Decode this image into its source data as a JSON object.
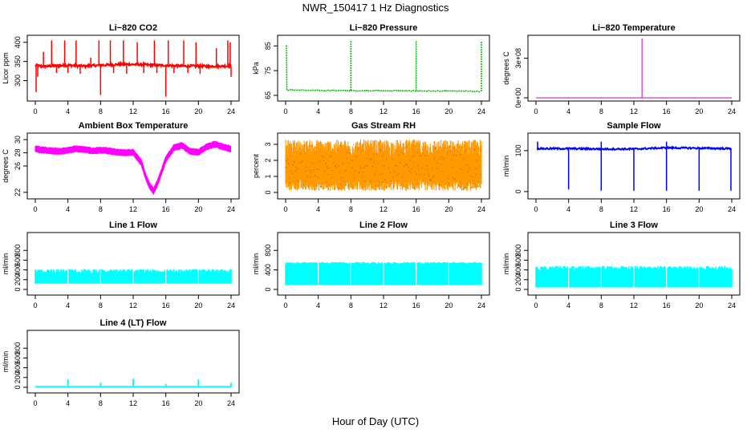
{
  "title": "NWR_150417  1 Hz Diagnostics",
  "xlabel": "Hour of Day (UTC)",
  "chart_data": [
    {
      "type": "line",
      "title": "Li−820 CO2",
      "ylabel": "Licor ppm",
      "color": "#ff0000",
      "xlim": [
        0,
        24
      ],
      "ylim": [
        255,
        410
      ],
      "yticks": [
        "300",
        "350",
        "400"
      ],
      "xticks": [
        "0",
        "4",
        "8",
        "12",
        "16",
        "20",
        "24"
      ],
      "series": [
        {
          "name": "CO2",
          "x": [
            0,
            0.5,
            1,
            2,
            3,
            4,
            5,
            6,
            7,
            8,
            9,
            10,
            11,
            12,
            13,
            14,
            15,
            16,
            17,
            18,
            19,
            20,
            21,
            22,
            23,
            24
          ],
          "y": [
            340,
            338,
            337,
            338,
            339,
            340,
            339,
            338,
            339,
            340,
            341,
            342,
            343,
            342,
            342,
            341,
            340,
            340,
            339,
            338,
            338,
            338,
            337,
            338,
            338,
            338
          ]
        }
      ]
    },
    {
      "type": "line",
      "title": "Li−820 Pressure",
      "ylabel": "kPa",
      "color": "#00bb00",
      "xlim": [
        0,
        24
      ],
      "ylim": [
        64,
        88
      ],
      "yticks": [
        "65",
        "75",
        "85"
      ],
      "xticks": [
        "0",
        "4",
        "8",
        "12",
        "16",
        "20",
        "24"
      ],
      "series": [
        {
          "name": "Pressure",
          "x": [
            0,
            0.2,
            4,
            8,
            12,
            16,
            20,
            24
          ],
          "y": [
            85,
            67.2,
            67.0,
            66.9,
            66.9,
            66.8,
            66.7,
            66.6
          ]
        }
      ]
    },
    {
      "type": "line",
      "title": "Li−820 Temperature",
      "ylabel": "degrees C",
      "color": "#cc00cc",
      "xlim": [
        0,
        24
      ],
      "ylim": [
        0,
        450000000
      ],
      "yticks": [
        "0e+00",
        "3e+08"
      ],
      "xticks": [
        "0",
        "4",
        "8",
        "12",
        "16",
        "20",
        "24"
      ],
      "series": [
        {
          "name": "Temperature",
          "x": [
            0,
            13,
            13,
            13,
            24
          ],
          "y": [
            50,
            50,
            400000000,
            50,
            50
          ]
        }
      ]
    },
    {
      "type": "line",
      "title": "Ambient Box Temperature",
      "ylabel": "degrees C",
      "color": "#ff00ff",
      "xlim": [
        0,
        24
      ],
      "ylim": [
        21.5,
        30.5
      ],
      "yticks": [
        "22",
        "26",
        "28",
        "30"
      ],
      "xticks": [
        "0",
        "4",
        "8",
        "12",
        "16",
        "20",
        "24"
      ],
      "series": [
        {
          "name": "Ambient",
          "x": [
            0,
            1,
            2,
            3,
            4,
            5,
            6,
            7,
            8,
            9,
            10,
            11,
            12,
            13,
            13.5,
            14,
            14.5,
            15,
            16,
            17,
            18,
            19,
            20,
            21,
            22,
            23,
            24
          ],
          "y": [
            28.6,
            28.4,
            28.3,
            28.2,
            28.4,
            28.6,
            28.5,
            28.3,
            28.4,
            28.3,
            28.1,
            28.0,
            28.1,
            26.5,
            24.5,
            23.0,
            22.2,
            23.5,
            27.0,
            28.8,
            29.1,
            28.2,
            28.1,
            28.9,
            29.3,
            28.9,
            28.6
          ]
        }
      ]
    },
    {
      "type": "scatter",
      "title": "Gas Stream RH",
      "ylabel": "percent",
      "color": "#ff9900",
      "xlim": [
        0,
        24
      ],
      "ylim": [
        -0.2,
        3.5
      ],
      "yticks": [
        "0",
        "1",
        "2",
        "3"
      ],
      "xticks": [
        "0",
        "4",
        "8",
        "12",
        "16",
        "20",
        "24"
      ],
      "series": [
        {
          "name": "RH",
          "x": [
            0,
            24
          ],
          "y": [
            0.1,
            3.2
          ]
        }
      ]
    },
    {
      "type": "line",
      "title": "Sample Flow",
      "ylabel": "ml/min",
      "color": "#0000ff",
      "xlim": [
        0,
        24
      ],
      "ylim": [
        -10,
        135
      ],
      "yticks": [
        "0",
        "100"
      ],
      "xticks": [
        "0",
        "4",
        "8",
        "12",
        "16",
        "20",
        "24"
      ],
      "series": [
        {
          "name": "Sample",
          "x": [
            0,
            4,
            8,
            12,
            16,
            20,
            24
          ],
          "y": [
            105,
            105,
            104,
            104,
            107,
            106,
            105
          ]
        }
      ]
    },
    {
      "type": "line",
      "title": "Line 1 Flow",
      "ylabel": "ml/min",
      "color": "#00ffff",
      "xlim": [
        0,
        24
      ],
      "ylim": [
        -50,
        1100
      ],
      "yticks": [
        "0",
        "200",
        "400",
        "600",
        "800"
      ],
      "xticks": [
        "0",
        "4",
        "8",
        "12",
        "16",
        "20",
        "24"
      ],
      "series": [
        {
          "name": "Line1",
          "x": [
            0,
            24
          ],
          "y": [
            120,
            420
          ]
        }
      ]
    },
    {
      "type": "line",
      "title": "Line 2 Flow",
      "ylabel": "ml/min",
      "color": "#00ffff",
      "xlim": [
        0,
        24
      ],
      "ylim": [
        -50,
        1100
      ],
      "yticks": [
        "0",
        "400",
        "800"
      ],
      "xticks": [
        "0",
        "4",
        "8",
        "12",
        "16",
        "20",
        "24"
      ],
      "series": [
        {
          "name": "Line2",
          "x": [
            0,
            24
          ],
          "y": [
            90,
            560
          ]
        }
      ]
    },
    {
      "type": "line",
      "title": "Line 3 Flow",
      "ylabel": "ml/min",
      "color": "#00ffff",
      "xlim": [
        0,
        24
      ],
      "ylim": [
        -50,
        1100
      ],
      "yticks": [
        "0",
        "200",
        "400",
        "600",
        "800"
      ],
      "xticks": [
        "0",
        "4",
        "8",
        "12",
        "16",
        "20",
        "24"
      ],
      "series": [
        {
          "name": "Line3",
          "x": [
            0,
            24
          ],
          "y": [
            40,
            480
          ]
        }
      ]
    },
    {
      "type": "line",
      "title": "Line 4 (LT) Flow",
      "ylabel": "ml/min",
      "color": "#00ffff",
      "xlim": [
        0,
        24
      ],
      "ylim": [
        -50,
        1100
      ],
      "yticks": [
        "0",
        "200",
        "400",
        "600",
        "800"
      ],
      "xticks": [
        "0",
        "4",
        "8",
        "12",
        "16",
        "20",
        "24"
      ],
      "series": [
        {
          "name": "Line4",
          "x": [
            0,
            4,
            8,
            12,
            16,
            20,
            24
          ],
          "y": [
            10,
            10,
            10,
            10,
            10,
            10,
            10
          ]
        }
      ]
    }
  ]
}
